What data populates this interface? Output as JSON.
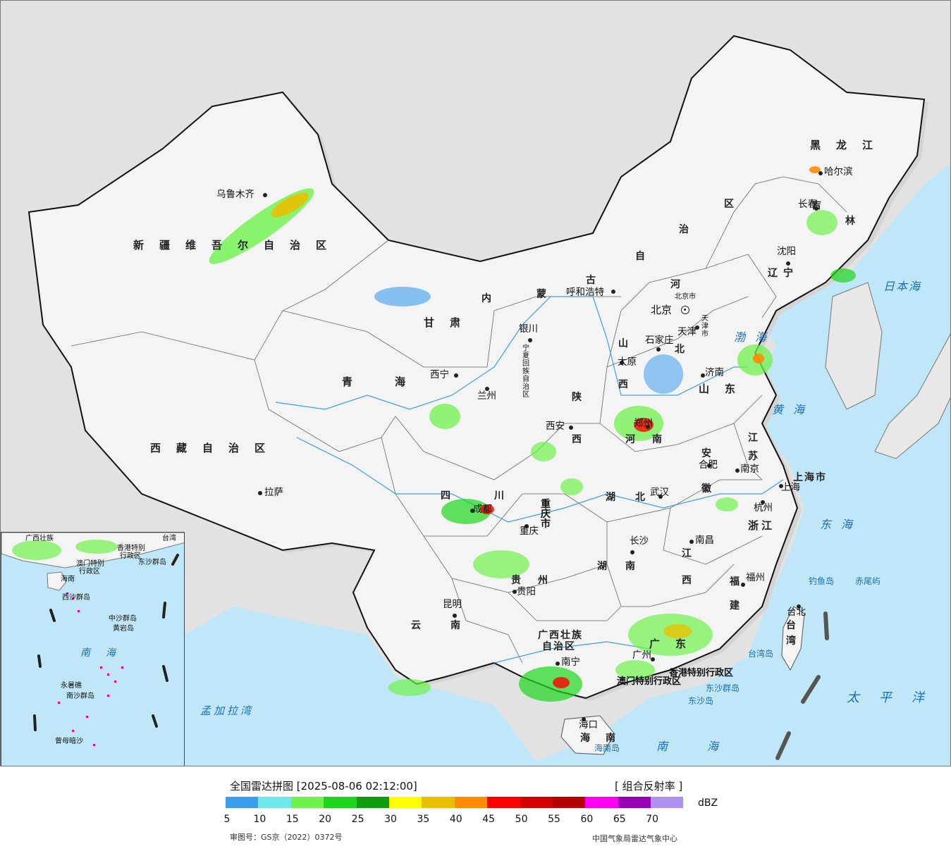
{
  "title": "全国雷达拼图 [2025-08-06 02:12:00]",
  "product": "[ 组合反射率 ]",
  "unit": "dBZ",
  "review_number": "审图号：GS京（2022）0372号",
  "agency": "中国气象局雷达气象中心",
  "colors": {
    "land": "#f4f4f4",
    "sea": "#bfe7f8",
    "outside": "#e2e2e2"
  },
  "legend": {
    "colors": [
      "#3c9ded",
      "#6ee8ea",
      "#6ff24c",
      "#1ed51e",
      "#0f9c0f",
      "#ffff00",
      "#e8c000",
      "#ff8c00",
      "#ff0000",
      "#d20000",
      "#b40000",
      "#ff00f0",
      "#9600b4",
      "#ad90f0"
    ],
    "ticks": [
      "5",
      "10",
      "15",
      "20",
      "25",
      "30",
      "35",
      "40",
      "45",
      "50",
      "55",
      "60",
      "65",
      "70"
    ]
  },
  "regions": {
    "xinjiang": "新疆维吾尔自治区",
    "xizang": "西藏自治区",
    "qinghai": "青海",
    "gansu": "甘肃",
    "neimenggu": [
      "内",
      "蒙",
      "古",
      "自",
      "治",
      "区"
    ],
    "heilongjiang": "黑龙江",
    "jilin": [
      "吉",
      "林"
    ],
    "liaoning": [
      "辽",
      "宁"
    ],
    "hebei": [
      "河",
      "北"
    ],
    "shanxi": [
      "山",
      "西"
    ],
    "shandong": "山东",
    "henan": [
      "河",
      "南"
    ],
    "shaanxi": [
      "陕",
      "西"
    ],
    "ningxia": "宁夏回族自治区",
    "sichuan": [
      "四",
      "川"
    ],
    "chongqing": "重庆市",
    "hubei": [
      "湖",
      "北"
    ],
    "hunan": [
      "湖",
      "南"
    ],
    "anhui": [
      "安",
      "徽"
    ],
    "jiangsu": [
      "江",
      "苏"
    ],
    "shanghai": "上海市",
    "zhejiang": "浙江",
    "jiangxi": [
      "江",
      "西"
    ],
    "fujian": [
      "福",
      "建"
    ],
    "guizhou": [
      "贵",
      "州"
    ],
    "yunnan": [
      "云",
      "南"
    ],
    "guangxi": [
      "广西壮族",
      "自治区"
    ],
    "guangdong": "广东",
    "hainan": [
      "海",
      "南"
    ],
    "taiwan": [
      "台",
      "湾"
    ],
    "hongkong": "香港特别行政区",
    "macau": "澳门特别行政区",
    "beijing": "北京市",
    "tianjin": "天津市"
  },
  "cities": {
    "urumqi": "乌鲁木齐",
    "lhasa": "拉萨",
    "xining": "西宁",
    "lanzhou": "兰州",
    "yinchuan": "银川",
    "hohhot": "呼和浩特",
    "beijing": "北京",
    "tianjin": "天津",
    "shijiazhuang": "石家庄",
    "taiyuan": "太原",
    "jinan": "济南",
    "zhengzhou": "郑州",
    "xian": "西安",
    "harbin": "哈尔滨",
    "changchun": "长春",
    "shenyang": "沈阳",
    "chengdu": "成都",
    "chongqing": "重庆",
    "wuhan": "武汉",
    "hefei": "合肥",
    "nanjing": "南京",
    "shanghai": "上海",
    "hangzhou": "杭州",
    "nanchang": "南昌",
    "changsha": "长沙",
    "fuzhou": "福州",
    "guiyang": "贵阳",
    "kunming": "昆明",
    "nanning": "南宁",
    "guangzhou": "广州",
    "haikou": "海口",
    "taibei": "台北"
  },
  "seas": {
    "bohai": "渤海",
    "huanghai": "黄海",
    "donghai": "东海",
    "nanhai": "南海",
    "taipingyang": "太平洋",
    "ribenhai": "日本海",
    "mengjialawan": "孟加拉湾",
    "taiwandao": "台湾岛",
    "hainandao": "海南岛",
    "dongshaqundao": "东沙群岛",
    "dongshadao": "东沙岛",
    "diaoyudao": "钓鱼岛",
    "chiweiyu": "赤尾屿"
  },
  "inset": {
    "nanhai": "南　海",
    "labels": [
      "广西壮族",
      "海南",
      "台湾",
      "香港特别",
      "行政区",
      "澳门特别",
      "行政区",
      "东沙群岛",
      "西沙群岛",
      "中沙群岛",
      "黄岩岛",
      "永暑礁",
      "南沙群岛",
      "曾母暗沙"
    ]
  }
}
